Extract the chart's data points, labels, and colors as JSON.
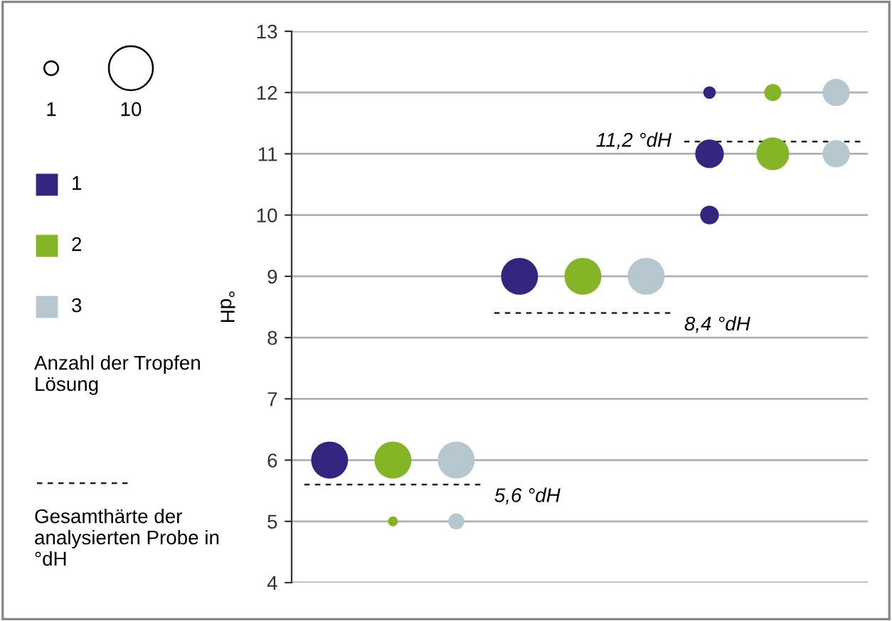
{
  "chart_data": {
    "type": "bubble",
    "ylabel": "°dH",
    "legend_title": "Anzahl der Tropfen Lösung",
    "categories": [
      null,
      null,
      null,
      null,
      null,
      null,
      null,
      null,
      null
    ],
    "ylim": [
      4,
      13
    ],
    "yticks": [
      4,
      5,
      6,
      7,
      8,
      9,
      10,
      11,
      12,
      13
    ],
    "grid": "y",
    "legend": "left",
    "tick_labels": "y",
    "size_legend": [
      1,
      10
    ],
    "series": [
      {
        "name": "1",
        "color": "#32267f",
        "values": [
          6,
          null,
          null,
          9,
          null,
          null,
          11,
          null,
          null
        ],
        "sizes": [
          7,
          null,
          null,
          7,
          null,
          null,
          4.2,
          null,
          null
        ]
      },
      {
        "name": "2",
        "color": "#84b527",
        "values": [
          null,
          6,
          null,
          null,
          9,
          null,
          null,
          11,
          null
        ],
        "sizes": [
          null,
          7,
          null,
          null,
          7,
          null,
          null,
          5.5,
          null
        ]
      },
      {
        "name": "3",
        "color": "#b7c7cf",
        "values": [
          null,
          null,
          6,
          null,
          null,
          9,
          null,
          null,
          11
        ],
        "sizes": [
          null,
          null,
          7,
          null,
          null,
          7,
          null,
          null,
          3.8
        ]
      },
      {
        "color": "#32267f",
        "values": [
          null,
          null,
          null,
          null,
          null,
          null,
          12,
          null,
          null
        ],
        "sizes": [
          null,
          null,
          null,
          null,
          null,
          null,
          0.8,
          null,
          null
        ]
      },
      {
        "color": "#32267f",
        "values": [
          null,
          null,
          null,
          null,
          null,
          null,
          10,
          null,
          null
        ],
        "sizes": [
          null,
          null,
          null,
          null,
          null,
          null,
          1.8,
          null,
          null
        ]
      },
      {
        "color": "#84b527",
        "values": [
          null,
          5,
          null,
          null,
          null,
          null,
          null,
          12,
          null
        ],
        "sizes": [
          null,
          0.5,
          null,
          null,
          null,
          null,
          null,
          1.5,
          null
        ]
      },
      {
        "color": "#b7c7cf",
        "values": [
          null,
          null,
          5,
          null,
          null,
          null,
          null,
          null,
          12
        ],
        "sizes": [
          null,
          null,
          1.3,
          null,
          null,
          null,
          null,
          null,
          3.8
        ]
      }
    ],
    "ref_lines": [
      {
        "axis": "y",
        "value": 5.6,
        "label": "5,6 °dH",
        "color": "#222222",
        "line_style": "dashed"
      },
      {
        "axis": "y",
        "value": 8.4,
        "label": "8,4 °dH",
        "color": "#222222",
        "line_style": "dashed"
      },
      {
        "axis": "y",
        "value": 11.2,
        "label": "11,2 °dH",
        "color": "#222222",
        "line_style": "dashed"
      }
    ],
    "annotations": [
      "Gesamthärte der analysierten Probe in °dH"
    ]
  }
}
